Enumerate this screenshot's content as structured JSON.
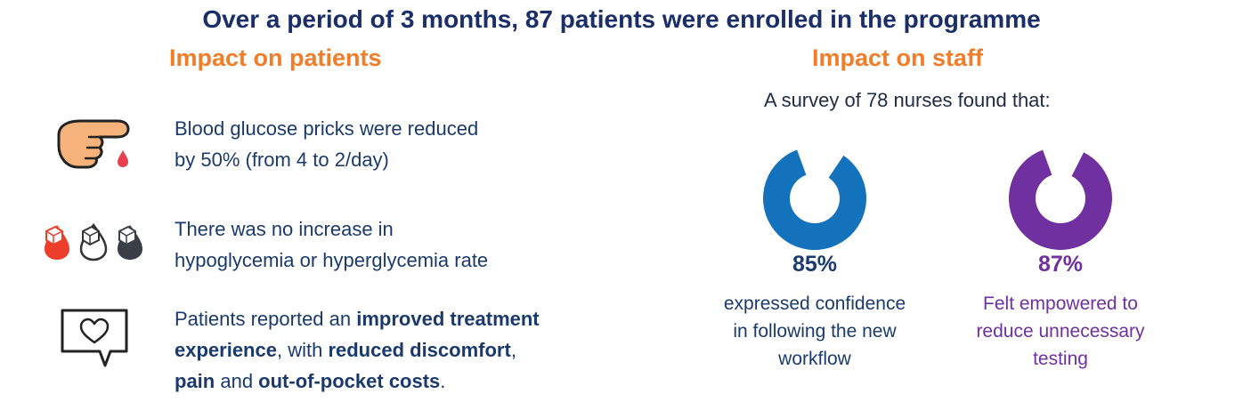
{
  "title": "Over a period of 3 months, 87 patients were enrolled in the programme",
  "patients": {
    "heading": "Impact on patients",
    "items": [
      {
        "icon": "finger-prick-icon",
        "lines": [
          [
            {
              "t": "Blood glucose pricks were reduced",
              "b": false
            }
          ],
          [
            {
              "t": "by 50% (from 4 to 2/day)",
              "b": false
            }
          ]
        ]
      },
      {
        "icon": "glucose-drops-icon",
        "lines": [
          [
            {
              "t": "There was no increase in",
              "b": false
            }
          ],
          [
            {
              "t": "hypoglycemia or hyperglycemia rate",
              "b": false
            }
          ]
        ]
      },
      {
        "icon": "heart-speech-bubble-icon",
        "lines": [
          [
            {
              "t": "Patients reported an ",
              "b": false
            },
            {
              "t": "improved treatment",
              "b": true
            }
          ],
          [
            {
              "t": "experience",
              "b": true
            },
            {
              "t": ", with ",
              "b": false
            },
            {
              "t": "reduced discomfort",
              "b": true
            },
            {
              "t": ",",
              "b": false
            }
          ],
          [
            {
              "t": "pain",
              "b": true
            },
            {
              "t": " and ",
              "b": false
            },
            {
              "t": "out-of-pocket costs",
              "b": true
            },
            {
              "t": ".",
              "b": false
            }
          ]
        ]
      }
    ]
  },
  "staff": {
    "heading": "Impact on staff",
    "survey_intro": "A survey of 78 nurses found that:"
  },
  "chart_data": {
    "type": "pie",
    "title": "A survey of 78 nurses found that:",
    "series": [
      {
        "name": "expressed confidence in following the new workflow",
        "value": 85,
        "label": "85%",
        "color": "#1472bd",
        "desc_lines": [
          "expressed confidence",
          "in following the new",
          "workflow"
        ]
      },
      {
        "name": "Felt empowered to reduce unnecessary testing",
        "value": 87,
        "label": "87%",
        "color": "#7030a0",
        "desc_lines": [
          "Felt empowered to",
          "reduce unnecessary",
          "testing"
        ]
      }
    ]
  }
}
